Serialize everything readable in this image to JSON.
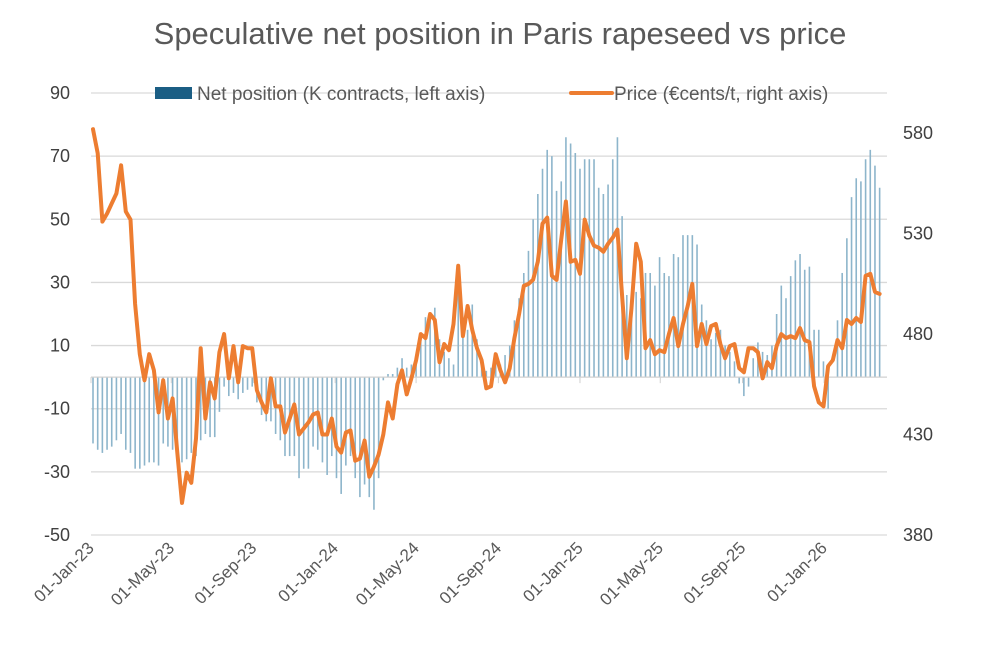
{
  "chart_data": {
    "type": "bar+line",
    "title": "Speculative net position in Paris rapeseed vs price",
    "legend_position": "top",
    "grid": true,
    "colors": {
      "net_position": "#1b5e84",
      "net_position_bars": "#8db5cb",
      "price": "#ED7D31",
      "grid": "#d9d9d9",
      "text": "#595959"
    },
    "left_axis": {
      "ylim": [
        -50,
        90
      ],
      "ticks": [
        "90",
        "70",
        "50",
        "30",
        "10",
        "-10",
        "-30",
        "-50"
      ]
    },
    "right_axis": {
      "ylim": [
        380,
        600
      ],
      "ticks": [
        "580",
        "530",
        "480",
        "430",
        "380"
      ]
    },
    "x_axis": {
      "xlim": [
        "2023-01-01",
        "2026-04-05"
      ],
      "ticks": [
        "2023-01-01",
        "2023-05-01",
        "2023-09-01",
        "2024-01-01",
        "2024-05-01",
        "2024-09-01",
        "2025-01-01",
        "2025-05-01",
        "2025-09-01",
        "2026-01-01"
      ],
      "tick_labels": [
        "01-Jan-23",
        "01-May-23",
        "01-Sep-23",
        "01-Jan-24",
        "01-May-24",
        "01-Sep-24",
        "01-Jan-25",
        "01-May-25",
        "01-Sep-25",
        "01-Jan-26"
      ]
    },
    "series": [
      {
        "name": "Net position (K contracts, left axis)",
        "type": "bar",
        "axis": "left",
        "values": [
          -21,
          -23,
          -24,
          -23,
          -22,
          -20,
          -18,
          -23,
          -24,
          -29,
          -29,
          -28,
          -27,
          -27,
          -28,
          -21,
          -22,
          -23,
          -25,
          -27,
          -26,
          -24,
          -25,
          -20,
          -18,
          -19,
          -19,
          -11,
          -3,
          -6,
          -5,
          -7,
          -5,
          -4,
          -3,
          -8,
          -12,
          -14,
          -14,
          -18,
          -20,
          -25,
          -25,
          -25,
          -32,
          -29,
          -29,
          -22,
          -23,
          -27,
          -31,
          -25,
          -32,
          -37,
          -28,
          -25,
          -32,
          -38,
          -34,
          -38,
          -42,
          -32,
          -1,
          1,
          1,
          3,
          6,
          3,
          4,
          5,
          14,
          19,
          20,
          22,
          12,
          8,
          6,
          4,
          27,
          18,
          15,
          23,
          12,
          5,
          2,
          3,
          5,
          4,
          7,
          10,
          18,
          25,
          33,
          40,
          50,
          58,
          66,
          72,
          70,
          59,
          62,
          76,
          74,
          71,
          66,
          69,
          69,
          69,
          60,
          58,
          61,
          69,
          76,
          51,
          26,
          20,
          27,
          25,
          33,
          33,
          29,
          38,
          33,
          32,
          39,
          38,
          45,
          45,
          45,
          42,
          23,
          18,
          12,
          14,
          15,
          10,
          8,
          5,
          -2,
          -6,
          -3,
          6,
          11,
          8,
          7,
          10,
          20,
          29,
          25,
          32,
          37,
          39,
          34,
          35,
          15,
          15,
          5,
          -10,
          0,
          18,
          33,
          44,
          57,
          63,
          62,
          69,
          72,
          67,
          60
        ]
      },
      {
        "name": "Price (€cents/t, right axis)",
        "type": "line",
        "axis": "right",
        "values": [
          582,
          570,
          536,
          540,
          545,
          550,
          564,
          541,
          537,
          495,
          470,
          457,
          470,
          462,
          441,
          457,
          438,
          448,
          421,
          396,
          411,
          406,
          428,
          473,
          438,
          456,
          448,
          471,
          480,
          458,
          474,
          456,
          474,
          473,
          473,
          452,
          446,
          441,
          458,
          444,
          444,
          431,
          438,
          445,
          430,
          433,
          436,
          440,
          441,
          430,
          430,
          438,
          424,
          421,
          431,
          432,
          417,
          418,
          427,
          409,
          414,
          420,
          430,
          446,
          438,
          455,
          462,
          450,
          458,
          467,
          480,
          478,
          490,
          487,
          466,
          475,
          472,
          485,
          514,
          479,
          494,
          482,
          473,
          467,
          453,
          454,
          470,
          462,
          456,
          463,
          478,
          490,
          504,
          505,
          507,
          516,
          535,
          538,
          509,
          507,
          527,
          546,
          516,
          517,
          510,
          537,
          529,
          524,
          523,
          521,
          525,
          528,
          532,
          499,
          468,
          493,
          525,
          516,
          473,
          477,
          470,
          472,
          471,
          480,
          488,
          474,
          485,
          494,
          505,
          474,
          485,
          475,
          484,
          485,
          475,
          468,
          474,
          475,
          463,
          461,
          473,
          473,
          471,
          458,
          466,
          463,
          474,
          480,
          478,
          479,
          478,
          483,
          477,
          476,
          454,
          446,
          444,
          464,
          467,
          477,
          473,
          487,
          485,
          488,
          486,
          509,
          510,
          501,
          500
        ]
      }
    ],
    "x": [
      "2023-01-04",
      "2023-01-11",
      "2023-01-18",
      "2023-01-25",
      "2023-02-01",
      "2023-02-08",
      "2023-02-15",
      "2023-02-22",
      "2023-03-01",
      "2023-03-08",
      "2023-03-15",
      "2023-03-22",
      "2023-03-29",
      "2023-04-05",
      "2023-04-12",
      "2023-04-19",
      "2023-04-26",
      "2023-05-03",
      "2023-05-10",
      "2023-05-17",
      "2023-05-24",
      "2023-05-31",
      "2023-06-07",
      "2023-06-14",
      "2023-06-21",
      "2023-06-28",
      "2023-07-05",
      "2023-07-12",
      "2023-07-19",
      "2023-07-26",
      "2023-08-02",
      "2023-08-09",
      "2023-08-16",
      "2023-08-23",
      "2023-08-30",
      "2023-09-06",
      "2023-09-13",
      "2023-09-20",
      "2023-09-27",
      "2023-10-04",
      "2023-10-11",
      "2023-10-18",
      "2023-10-25",
      "2023-11-01",
      "2023-11-08",
      "2023-11-15",
      "2023-11-22",
      "2023-11-29",
      "2023-12-06",
      "2023-12-13",
      "2023-12-20",
      "2023-12-27",
      "2024-01-03",
      "2024-01-10",
      "2024-01-17",
      "2024-01-24",
      "2024-01-31",
      "2024-02-07",
      "2024-02-14",
      "2024-02-21",
      "2024-02-28",
      "2024-03-06",
      "2024-03-13",
      "2024-03-20",
      "2024-03-27",
      "2024-04-03",
      "2024-04-10",
      "2024-04-17",
      "2024-04-24",
      "2024-05-01",
      "2024-05-08",
      "2024-05-15",
      "2024-05-22",
      "2024-05-29",
      "2024-06-05",
      "2024-06-12",
      "2024-06-19",
      "2024-06-26",
      "2024-07-03",
      "2024-07-10",
      "2024-07-17",
      "2024-07-24",
      "2024-07-31",
      "2024-08-07",
      "2024-08-14",
      "2024-08-21",
      "2024-08-28",
      "2024-09-04",
      "2024-09-11",
      "2024-09-18",
      "2024-09-25",
      "2024-10-02",
      "2024-10-09",
      "2024-10-16",
      "2024-10-23",
      "2024-10-30",
      "2024-11-06",
      "2024-11-13",
      "2024-11-20",
      "2024-11-27",
      "2024-12-04",
      "2024-12-11",
      "2024-12-18",
      "2024-12-25",
      "2025-01-01",
      "2025-01-08",
      "2025-01-15",
      "2025-01-22",
      "2025-01-29",
      "2025-02-05",
      "2025-02-12",
      "2025-02-19",
      "2025-02-26",
      "2025-03-05",
      "2025-03-12",
      "2025-03-19",
      "2025-03-26",
      "2025-04-02",
      "2025-04-09",
      "2025-04-16",
      "2025-04-23",
      "2025-04-30",
      "2025-05-07",
      "2025-05-14",
      "2025-05-21",
      "2025-05-28",
      "2025-06-04",
      "2025-06-11",
      "2025-06-18",
      "2025-06-25",
      "2025-07-02",
      "2025-07-09",
      "2025-07-16",
      "2025-07-23",
      "2025-07-30",
      "2025-08-06",
      "2025-08-13",
      "2025-08-20",
      "2025-08-27",
      "2025-09-03",
      "2025-09-10",
      "2025-09-17",
      "2025-09-24",
      "2025-10-01",
      "2025-10-08",
      "2025-10-15",
      "2025-10-22",
      "2025-10-29",
      "2025-11-05",
      "2025-11-12",
      "2025-11-19",
      "2025-11-26",
      "2025-12-03",
      "2025-12-10",
      "2025-12-17",
      "2025-12-24",
      "2025-12-31",
      "2026-01-07",
      "2026-01-14",
      "2026-01-21",
      "2026-01-28",
      "2026-02-04",
      "2026-02-11",
      "2026-02-18",
      "2026-02-25",
      "2026-03-04",
      "2026-03-11",
      "2026-03-18",
      "2026-03-25"
    ]
  }
}
